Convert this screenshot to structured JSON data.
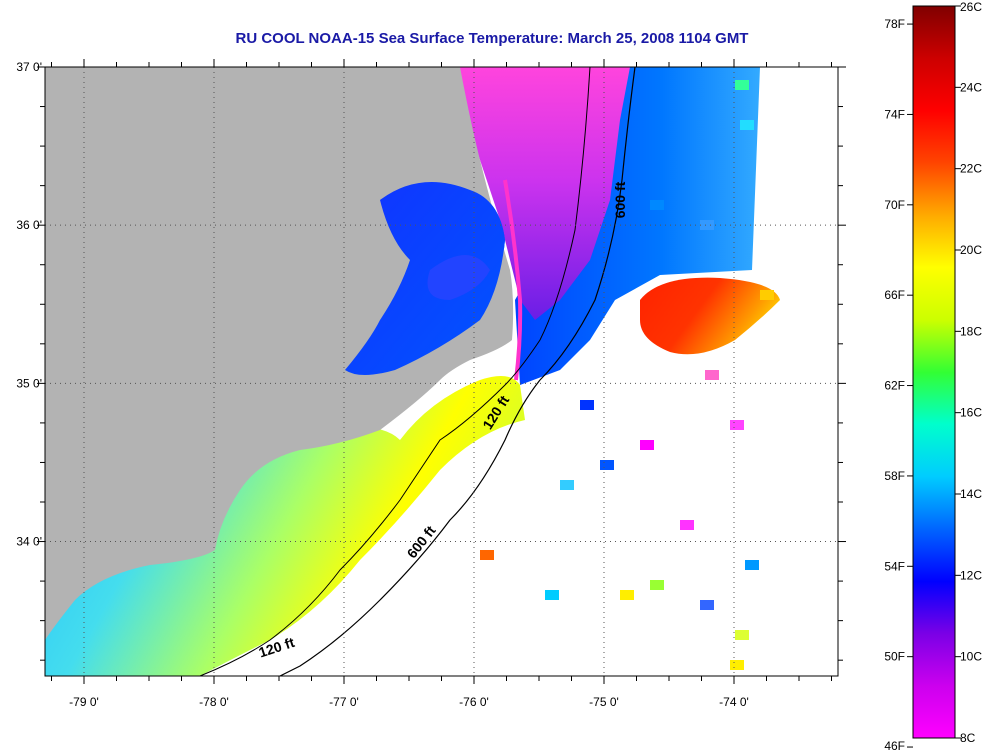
{
  "title": "RU COOL  NOAA-15  Sea Surface Temperature:  March 25, 2008 1104 GMT",
  "map": {
    "lon_range": [
      -79.3,
      -73.2
    ],
    "lat_range": [
      33.15,
      37.0
    ],
    "lon_ticks": [
      {
        "value": -79,
        "label": "-79 0'"
      },
      {
        "value": -78,
        "label": "-78 0'"
      },
      {
        "value": -77,
        "label": "-77 0'"
      },
      {
        "value": -76,
        "label": "-76 0'"
      },
      {
        "value": -75,
        "label": "-75 0'"
      },
      {
        "value": -74,
        "label": "-74 0'"
      }
    ],
    "lat_ticks": [
      {
        "value": 37,
        "label": "37 0'"
      },
      {
        "value": 36,
        "label": "36 0'"
      },
      {
        "value": 35,
        "label": "35 0'"
      },
      {
        "value": 34,
        "label": "34 0'"
      }
    ],
    "grid": "dotted",
    "land_color": "#b3b3b3",
    "contour_labels": [
      {
        "id": "c600-north",
        "text": "600 ft"
      },
      {
        "id": "c120-hatteras",
        "text": "120 ft"
      },
      {
        "id": "c600-south",
        "text": "600 ft"
      },
      {
        "id": "c120-south",
        "text": "120 ft"
      }
    ]
  },
  "colorbar": {
    "celsius_range": [
      8,
      26
    ],
    "celsius_labels": [
      "26C",
      "24C",
      "22C",
      "20C",
      "18C",
      "16C",
      "14C",
      "12C",
      "10C",
      "8C"
    ],
    "fahrenheit_labels": [
      "78F",
      "74F",
      "70F",
      "66F",
      "62F",
      "58F",
      "54F",
      "50F",
      "46F"
    ],
    "stops": [
      "#ff00ff",
      "#cc00ee",
      "#7a00e6",
      "#0000ff",
      "#0066ff",
      "#00ccff",
      "#00ffcc",
      "#33ff33",
      "#ccff00",
      "#ffff00",
      "#ffaa00",
      "#ff4400",
      "#ff0000",
      "#cc0000",
      "#800000"
    ]
  }
}
